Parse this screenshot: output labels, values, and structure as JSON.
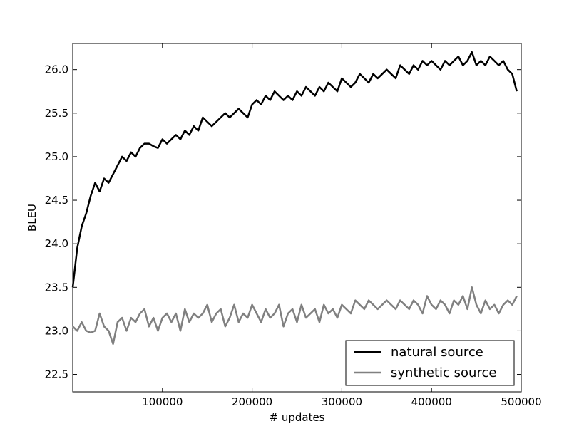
{
  "chart_data": {
    "type": "line",
    "xlabel": "# updates",
    "ylabel": "BLEU",
    "xlim": [
      0,
      500000
    ],
    "ylim": [
      22.3,
      26.3
    ],
    "xticks": [
      100000,
      200000,
      300000,
      400000,
      500000
    ],
    "yticks": [
      22.5,
      23.0,
      23.5,
      24.0,
      24.5,
      25.0,
      25.5,
      26.0
    ],
    "grid": false,
    "legend_position": "lower-right",
    "series": [
      {
        "name": "natural source",
        "color": "#000000",
        "x": [
          0,
          5000,
          10000,
          15000,
          20000,
          25000,
          30000,
          35000,
          40000,
          45000,
          50000,
          55000,
          60000,
          65000,
          70000,
          75000,
          80000,
          85000,
          90000,
          95000,
          100000,
          105000,
          110000,
          115000,
          120000,
          125000,
          130000,
          135000,
          140000,
          145000,
          150000,
          155000,
          160000,
          165000,
          170000,
          175000,
          180000,
          185000,
          190000,
          195000,
          200000,
          205000,
          210000,
          215000,
          220000,
          225000,
          230000,
          235000,
          240000,
          245000,
          250000,
          255000,
          260000,
          265000,
          270000,
          275000,
          280000,
          285000,
          290000,
          295000,
          300000,
          305000,
          310000,
          315000,
          320000,
          325000,
          330000,
          335000,
          340000,
          345000,
          350000,
          355000,
          360000,
          365000,
          370000,
          375000,
          380000,
          385000,
          390000,
          395000,
          400000,
          405000,
          410000,
          415000,
          420000,
          425000,
          430000,
          435000,
          440000,
          445000,
          450000,
          455000,
          460000,
          465000,
          470000,
          475000,
          480000,
          485000,
          490000,
          495000
        ],
        "y": [
          23.5,
          23.95,
          24.2,
          24.35,
          24.55,
          24.7,
          24.6,
          24.75,
          24.7,
          24.8,
          24.9,
          25.0,
          24.95,
          25.05,
          25.0,
          25.1,
          25.15,
          25.15,
          25.12,
          25.1,
          25.2,
          25.15,
          25.2,
          25.25,
          25.2,
          25.3,
          25.25,
          25.35,
          25.3,
          25.45,
          25.4,
          25.35,
          25.4,
          25.45,
          25.5,
          25.45,
          25.5,
          25.55,
          25.5,
          25.45,
          25.6,
          25.65,
          25.6,
          25.7,
          25.65,
          25.75,
          25.7,
          25.65,
          25.7,
          25.65,
          25.75,
          25.7,
          25.8,
          25.75,
          25.7,
          25.8,
          25.75,
          25.85,
          25.8,
          25.75,
          25.9,
          25.85,
          25.8,
          25.85,
          25.95,
          25.9,
          25.85,
          25.95,
          25.9,
          25.95,
          26.0,
          25.95,
          25.9,
          26.05,
          26.0,
          25.95,
          26.05,
          26.0,
          26.1,
          26.05,
          26.1,
          26.05,
          26.0,
          26.1,
          26.05,
          26.1,
          26.15,
          26.05,
          26.1,
          26.2,
          26.05,
          26.1,
          26.05,
          26.15,
          26.1,
          26.05,
          26.1,
          26.0,
          25.95,
          25.75
        ]
      },
      {
        "name": "synthetic source",
        "color": "#808080",
        "x": [
          0,
          5000,
          10000,
          15000,
          20000,
          25000,
          30000,
          35000,
          40000,
          45000,
          50000,
          55000,
          60000,
          65000,
          70000,
          75000,
          80000,
          85000,
          90000,
          95000,
          100000,
          105000,
          110000,
          115000,
          120000,
          125000,
          130000,
          135000,
          140000,
          145000,
          150000,
          155000,
          160000,
          165000,
          170000,
          175000,
          180000,
          185000,
          190000,
          195000,
          200000,
          205000,
          210000,
          215000,
          220000,
          225000,
          230000,
          235000,
          240000,
          245000,
          250000,
          255000,
          260000,
          265000,
          270000,
          275000,
          280000,
          285000,
          290000,
          295000,
          300000,
          305000,
          310000,
          315000,
          320000,
          325000,
          330000,
          335000,
          340000,
          345000,
          350000,
          355000,
          360000,
          365000,
          370000,
          375000,
          380000,
          385000,
          390000,
          395000,
          400000,
          405000,
          410000,
          415000,
          420000,
          425000,
          430000,
          435000,
          440000,
          445000,
          450000,
          455000,
          460000,
          465000,
          470000,
          475000,
          480000,
          485000,
          490000,
          495000
        ],
        "y": [
          23.05,
          23.0,
          23.1,
          23.0,
          22.98,
          23.0,
          23.2,
          23.05,
          23.0,
          22.85,
          23.1,
          23.15,
          23.0,
          23.15,
          23.1,
          23.2,
          23.25,
          23.05,
          23.15,
          23.0,
          23.15,
          23.2,
          23.1,
          23.2,
          23.0,
          23.25,
          23.1,
          23.2,
          23.15,
          23.2,
          23.3,
          23.1,
          23.2,
          23.25,
          23.05,
          23.15,
          23.3,
          23.1,
          23.2,
          23.15,
          23.3,
          23.2,
          23.1,
          23.25,
          23.15,
          23.2,
          23.3,
          23.05,
          23.2,
          23.25,
          23.1,
          23.3,
          23.15,
          23.2,
          23.25,
          23.1,
          23.3,
          23.2,
          23.25,
          23.15,
          23.3,
          23.25,
          23.2,
          23.35,
          23.3,
          23.25,
          23.35,
          23.3,
          23.25,
          23.3,
          23.35,
          23.3,
          23.25,
          23.35,
          23.3,
          23.25,
          23.35,
          23.3,
          23.2,
          23.4,
          23.3,
          23.25,
          23.35,
          23.3,
          23.2,
          23.35,
          23.3,
          23.4,
          23.25,
          23.5,
          23.3,
          23.2,
          23.35,
          23.25,
          23.3,
          23.2,
          23.3,
          23.35,
          23.3,
          23.4
        ]
      }
    ]
  }
}
